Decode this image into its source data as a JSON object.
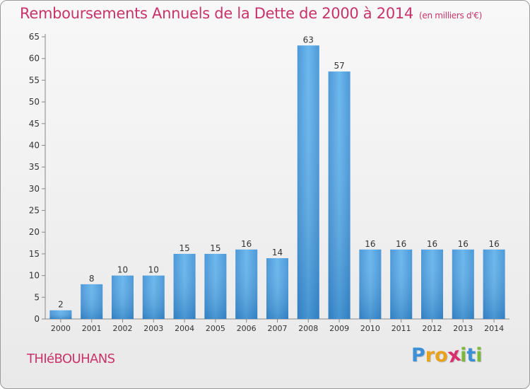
{
  "header": {
    "title": "Remboursements Annuels de la Dette de 2000 à 2014",
    "unit": "(en milliers d'€)"
  },
  "footer": {
    "commune": "THIéBOUHANS",
    "logo_letters": [
      "P",
      "r",
      "o",
      "x",
      "i",
      "t",
      "i"
    ],
    "logo_colors": [
      "#3a8fd6",
      "#e8a21c",
      "#e8a21c",
      "#d8306a",
      "#7cb83a",
      "#3a8fd6",
      "#7cb83a"
    ]
  },
  "chart_data": {
    "type": "bar",
    "categories": [
      "2000",
      "2001",
      "2002",
      "2003",
      "2004",
      "2005",
      "2006",
      "2007",
      "2008",
      "2009",
      "2010",
      "2011",
      "2012",
      "2013",
      "2014"
    ],
    "values": [
      2,
      8,
      10,
      10,
      15,
      15,
      16,
      14,
      63,
      57,
      16,
      16,
      16,
      16,
      16
    ],
    "ylim": [
      0,
      65
    ],
    "yticks": [
      0,
      5,
      10,
      15,
      20,
      25,
      30,
      35,
      40,
      45,
      50,
      55,
      60,
      65
    ],
    "grid": false,
    "bar_color": "#4b9fe0"
  }
}
